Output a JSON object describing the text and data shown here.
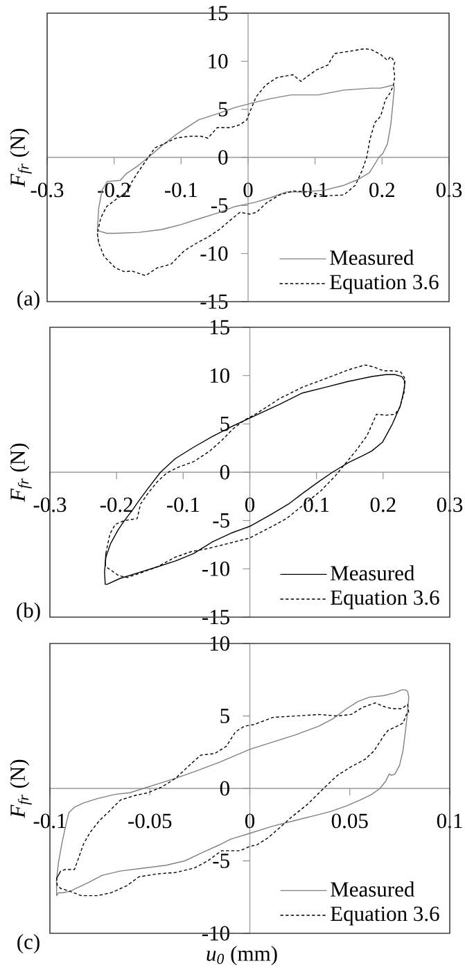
{
  "chart_data": [
    {
      "type": "line",
      "title": "(a)",
      "ylabel": "*F$_{fr}$* (N)",
      "xlim": [
        -0.3,
        0.3
      ],
      "ylim": [
        -15,
        15
      ],
      "xticks": [
        -0.3,
        -0.2,
        -0.1,
        0,
        0.1,
        0.2,
        0.3
      ],
      "yticks": [
        -15,
        -10,
        -5,
        0,
        5,
        10,
        15
      ],
      "legend": "bottom right",
      "series": [
        {
          "name": "Measured",
          "color": "#808080",
          "line_style": "solid",
          "x": [
            -0.225,
            -0.223,
            -0.218,
            -0.21,
            -0.191,
            -0.182,
            -0.163,
            -0.149,
            -0.129,
            -0.105,
            -0.074,
            -0.043,
            -0.019,
            0.009,
            0.033,
            0.064,
            0.105,
            0.143,
            0.184,
            0.198,
            0.215,
            0.218,
            0.218,
            0.216,
            0.213,
            0.208,
            0.201,
            0.195,
            0.191,
            0.181,
            0.164,
            0.143,
            0.115,
            0.081,
            0.057,
            0.033,
            0.009,
            -0.019,
            -0.046,
            -0.074,
            -0.101,
            -0.129,
            -0.163,
            -0.198,
            -0.211,
            -0.225,
            -0.223
          ],
          "values": [
            -7.6,
            -5.3,
            -3.4,
            -2.5,
            -2.4,
            -1.7,
            -0.8,
            0,
            1.2,
            2.5,
            3.9,
            4.6,
            5.2,
            5.7,
            6.1,
            6.5,
            6.5,
            7.0,
            7.2,
            7.2,
            7.5,
            7.4,
            7.0,
            5.5,
            3.4,
            1.4,
            0.4,
            0,
            -0.5,
            -1.6,
            -2.3,
            -2.9,
            -3.4,
            -3.6,
            -3.6,
            -4.2,
            -4.7,
            -5.1,
            -5.8,
            -6.4,
            -7.0,
            -7.5,
            -7.8,
            -7.9,
            -7.9,
            -7.6,
            -5.3
          ]
        },
        {
          "name": "Equation 3.6",
          "color": "#000000",
          "line_style": "dashed",
          "x": [
            -0.225,
            -0.223,
            -0.215,
            -0.198,
            -0.184,
            -0.174,
            -0.153,
            -0.136,
            -0.115,
            -0.095,
            -0.074,
            -0.06,
            -0.043,
            -0.026,
            -0.012,
            0.002,
            0.013,
            0.028,
            0.047,
            0.067,
            0.091,
            0.115,
            0.143,
            0.16,
            0.17,
            0.177,
            0.182,
            0.189,
            0.198,
            0.205,
            0.212,
            0.217,
            0.219,
            0.217,
            0.219,
            0.213,
            0.208,
            0.198,
            0.184,
            0.174,
            0.157,
            0.129,
            0.119,
            0.102,
            0.088,
            0.079,
            0.067,
            0.043,
            0.026,
            0.012,
            0.003,
            -0.002,
            -0.012,
            -0.026,
            -0.046,
            -0.06,
            -0.07,
            -0.088,
            -0.108,
            -0.129,
            -0.139,
            -0.149,
            -0.163,
            -0.174,
            -0.18,
            -0.194,
            -0.211,
            -0.22,
            -0.225,
            -0.223
          ],
          "values": [
            -7.9,
            -8.9,
            -10.3,
            -11.5,
            -11.9,
            -11.8,
            -12.3,
            -11.5,
            -11.1,
            -9.7,
            -8.8,
            -8.3,
            -7.5,
            -6.5,
            -5.7,
            -5.9,
            -5.7,
            -4.7,
            -3.9,
            -3.5,
            -3.6,
            -4.0,
            -3.9,
            -2.9,
            -1.4,
            0,
            1.9,
            3.6,
            4.3,
            6.0,
            6.7,
            7.5,
            8.4,
            9.4,
            9.9,
            10.5,
            10.1,
            10.7,
            11.2,
            11.3,
            11.1,
            10.8,
            9.6,
            9.1,
            8.4,
            7.9,
            8.6,
            8.3,
            7.5,
            6.3,
            4.8,
            3.9,
            3.4,
            3.1,
            3.1,
            2.0,
            2.2,
            2.2,
            2.0,
            1.3,
            1.0,
            0,
            -1.4,
            -2.6,
            -3.7,
            -4.2,
            -5.1,
            -6.3,
            -7.9,
            -8.9
          ]
        }
      ]
    },
    {
      "type": "line",
      "title": "(b)",
      "ylabel": "*F$_{fr}$* (N)",
      "xlim": [
        -0.3,
        0.3
      ],
      "ylim": [
        -15,
        15
      ],
      "xticks": [
        -0.3,
        -0.2,
        -0.1,
        0,
        0.1,
        0.2,
        0.3
      ],
      "yticks": [
        -15,
        -10,
        -5,
        0,
        5,
        10,
        15
      ],
      "legend": "bottom right",
      "series": [
        {
          "name": "Measured",
          "color": "#000000",
          "line_style": "solid",
          "x": [
            -0.217,
            -0.218,
            -0.216,
            -0.209,
            -0.198,
            -0.188,
            -0.176,
            -0.167,
            -0.153,
            -0.134,
            -0.112,
            -0.084,
            -0.056,
            -0.028,
            0,
            0.031,
            0.044,
            0.079,
            0.114,
            0.148,
            0.183,
            0.204,
            0.218,
            0.228,
            0.233,
            0.231,
            0.226,
            0.214,
            0.199,
            0.183,
            0.169,
            0.148,
            0.124,
            0.103,
            0.079,
            0.058,
            0.031,
            0,
            -0.028,
            -0.056,
            -0.084,
            -0.112,
            -0.139,
            -0.167,
            -0.195,
            -0.214,
            -0.217,
            -0.218
          ],
          "values": [
            -11.6,
            -10.3,
            -8.8,
            -7.4,
            -6.0,
            -5.0,
            -3.9,
            -3.0,
            -1.7,
            0,
            1.4,
            2.6,
            3.7,
            4.7,
            5.6,
            6.6,
            7.0,
            8.2,
            8.8,
            9.4,
            9.9,
            10.1,
            10.1,
            9.9,
            9.4,
            8.4,
            6.9,
            5.0,
            3.1,
            2.2,
            1.7,
            1.0,
            0,
            -1.0,
            -2.2,
            -3.3,
            -4.4,
            -5.6,
            -6.3,
            -7.2,
            -8.4,
            -9.2,
            -9.8,
            -10.4,
            -11.0,
            -11.6,
            -11.6,
            -10.3
          ]
        },
        {
          "name": "Equation 3.6",
          "color": "#000000",
          "line_style": "dashed",
          "x": [
            -0.217,
            -0.216,
            -0.21,
            -0.202,
            -0.188,
            -0.169,
            -0.164,
            -0.153,
            -0.139,
            -0.125,
            -0.108,
            -0.084,
            -0.06,
            -0.042,
            -0.025,
            -0.008,
            0.006,
            0.031,
            0.044,
            0.079,
            0.114,
            0.148,
            0.173,
            0.186,
            0.2,
            0.214,
            0.226,
            0.232,
            0.232,
            0.225,
            0.218,
            0.204,
            0.19,
            0.176,
            0.159,
            0.141,
            0.128,
            0.107,
            0.082,
            0.055,
            0.031,
            0,
            -0.028,
            -0.063,
            -0.087,
            -0.112,
            -0.139,
            -0.167,
            -0.184,
            -0.197,
            -0.209,
            -0.216,
            -0.217,
            -0.216
          ],
          "values": [
            -9.5,
            -8.4,
            -6.4,
            -5.4,
            -5.0,
            -4.8,
            -3.3,
            -2.2,
            -1.0,
            -0.1,
            0.5,
            1.1,
            2.2,
            3.3,
            4.5,
            5.4,
            5.9,
            7.0,
            7.6,
            8.8,
            9.7,
            10.6,
            11.1,
            10.9,
            10.5,
            10.5,
            10.4,
            9.8,
            8.4,
            6.7,
            6.0,
            5.9,
            6.0,
            3.8,
            2.2,
            0.7,
            -0.4,
            -1.9,
            -3.3,
            -4.8,
            -5.7,
            -6.8,
            -7.3,
            -7.9,
            -8.2,
            -8.8,
            -9.8,
            -10.5,
            -10.9,
            -10.7,
            -10.1,
            -9.8,
            -9.5,
            -8.4
          ]
        }
      ]
    },
    {
      "type": "line",
      "title": "(c)",
      "xlabel": "*u$_{0}$* (mm)",
      "ylabel": "*F$_{fr}$* (N)",
      "xlim": [
        -0.1,
        0.1
      ],
      "ylim": [
        -10,
        10
      ],
      "xticks": [
        -0.1,
        -0.05,
        0,
        0.05,
        0.1
      ],
      "yticks": [
        -10,
        -5,
        0,
        5,
        10
      ],
      "legend": "bottom right",
      "series": [
        {
          "name": "Measured",
          "color": "#808080",
          "line_style": "solid",
          "x": [
            -0.0966,
            -0.0967,
            -0.0957,
            -0.094,
            -0.0923,
            -0.0911,
            -0.0906,
            -0.09,
            -0.0877,
            -0.0831,
            -0.0762,
            -0.067,
            -0.06,
            -0.0532,
            -0.044,
            -0.037,
            -0.0268,
            -0.0153,
            0,
            0.0115,
            0.023,
            0.0346,
            0.0415,
            0.0484,
            0.0541,
            0.0599,
            0.0668,
            0.0726,
            0.076,
            0.0778,
            0.0789,
            0.0795,
            0.0789,
            0.0778,
            0.0766,
            0.0749,
            0.0726,
            0.0709,
            0.0697,
            0.068,
            0.0651,
            0.0611,
            0.0553,
            0.0484,
            0.0403,
            0.0346,
            0.023,
            0.0115,
            0,
            -0.0095,
            -0.0153,
            -0.0233,
            -0.0325,
            -0.0417,
            -0.0532,
            -0.0647,
            -0.0739,
            -0.0808,
            -0.09,
            -0.0934,
            -0.0957,
            -0.0966,
            -0.0967
          ],
          "values": [
            -7.4,
            -6.3,
            -5.1,
            -3.8,
            -2.7,
            -2.0,
            -1.7,
            -1.6,
            -1.3,
            -1.0,
            -0.7,
            -0.4,
            -0.3,
            0,
            0.4,
            0.7,
            1.2,
            1.8,
            2.7,
            3.2,
            3.7,
            4.3,
            4.8,
            5.5,
            6.0,
            6.3,
            6.4,
            6.6,
            6.8,
            6.8,
            6.7,
            6.3,
            5.3,
            3.9,
            2.6,
            1.6,
            1.0,
            0.9,
            1.0,
            0.5,
            0,
            -0.4,
            -0.8,
            -1.2,
            -1.6,
            -1.8,
            -2.2,
            -2.6,
            -3.1,
            -3.5,
            -3.9,
            -4.4,
            -5.0,
            -5.3,
            -5.5,
            -5.7,
            -6.0,
            -6.5,
            -7.1,
            -7.2,
            -7.2,
            -7.4,
            -6.3
          ]
        },
        {
          "name": "Equation 3.6",
          "color": "#000000",
          "line_style": "dashed",
          "x": [
            -0.0966,
            -0.0946,
            -0.0923,
            -0.0877,
            -0.0854,
            -0.0831,
            -0.0797,
            -0.0751,
            -0.0705,
            -0.0647,
            -0.0578,
            -0.0509,
            -0.044,
            -0.0371,
            -0.0302,
            -0.0245,
            -0.0176,
            -0.0118,
            -0.0072,
            -0.0026,
            0.002,
            0.0058,
            0.0115,
            0.023,
            0.0346,
            0.0438,
            0.0507,
            0.0565,
            0.0628,
            0.068,
            0.0714,
            0.076,
            0.0789,
            0.0795,
            0.0783,
            0.0766,
            0.0737,
            0.0691,
            0.0668,
            0.0622,
            0.0576,
            0.0507,
            0.0438,
            0.0369,
            0.0288,
            0.0207,
            0.015,
            0.0092,
            0.0035,
            0,
            -0.0049,
            -0.0141,
            -0.021,
            -0.0279,
            -0.0371,
            -0.0463,
            -0.0555,
            -0.0613,
            -0.0693,
            -0.0762,
            -0.0843,
            -0.09,
            -0.0946,
            -0.0963,
            -0.0966,
            -0.0946
          ],
          "values": [
            -6.2,
            -5.7,
            -5.6,
            -5.6,
            -4.7,
            -3.8,
            -3.0,
            -2.2,
            -1.6,
            -0.8,
            -0.5,
            -0.3,
            0.1,
            0.7,
            1.6,
            2.3,
            2.4,
            2.9,
            3.9,
            4.3,
            4.4,
            4.6,
            4.9,
            5.0,
            5.1,
            5.0,
            5.1,
            5.6,
            5.9,
            5.6,
            5.5,
            5.5,
            5.8,
            5.2,
            5.1,
            4.5,
            4.3,
            4.0,
            3.6,
            2.6,
            2.0,
            1.5,
            0.9,
            0,
            -1.1,
            -2.0,
            -2.7,
            -3.4,
            -3.9,
            -4.0,
            -4.3,
            -4.3,
            -5.0,
            -5.5,
            -5.8,
            -5.9,
            -6.1,
            -6.7,
            -7.2,
            -7.4,
            -7.4,
            -7.1,
            -6.9,
            -6.7,
            -6.2,
            -5.7
          ]
        }
      ]
    }
  ]
}
